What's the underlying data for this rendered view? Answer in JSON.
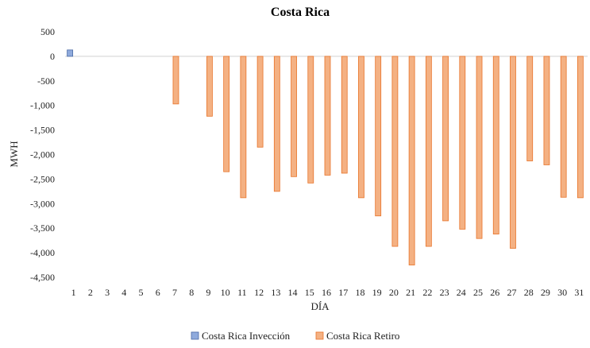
{
  "chart_data": {
    "type": "bar",
    "title": "Costa  Rica",
    "xlabel": "DÍA",
    "ylabel": "MWH",
    "ylim": [
      -4500,
      500
    ],
    "ytick_step": 500,
    "ytick_labels": [
      "500",
      "0",
      "-500",
      "-1,000",
      "-1,500",
      "-2,000",
      "-2,500",
      "-3,000",
      "-3,500",
      "-4,000",
      "-4,500"
    ],
    "categories": [
      "1",
      "2",
      "3",
      "4",
      "5",
      "6",
      "7",
      "8",
      "9",
      "10",
      "11",
      "12",
      "13",
      "14",
      "15",
      "16",
      "17",
      "18",
      "19",
      "20",
      "21",
      "22",
      "23",
      "24",
      "25",
      "26",
      "27",
      "28",
      "29",
      "30",
      "31"
    ],
    "series": [
      {
        "name": "Costa Rica Invección",
        "color": "#8faadc",
        "stroke": "#4a6aa5",
        "values": [
          130,
          0,
          0,
          0,
          0,
          0,
          0,
          0,
          0,
          0,
          0,
          0,
          0,
          0,
          0,
          0,
          0,
          0,
          0,
          0,
          0,
          0,
          0,
          0,
          0,
          0,
          0,
          0,
          0,
          0,
          0
        ]
      },
      {
        "name": "Costa Rica Retiro",
        "color": "#f4b183",
        "stroke": "#e8742a",
        "values": [
          0,
          0,
          0,
          0,
          0,
          0,
          -970,
          0,
          -1220,
          -2350,
          -2880,
          -1850,
          -2750,
          -2450,
          -2580,
          -2420,
          -2380,
          -2880,
          -3250,
          -3870,
          -4250,
          -3870,
          -3350,
          -3520,
          -3710,
          -3620,
          -3910,
          -2130,
          -2210,
          -2870,
          -2880
        ]
      }
    ],
    "legend_position": "bottom",
    "grid": false
  }
}
